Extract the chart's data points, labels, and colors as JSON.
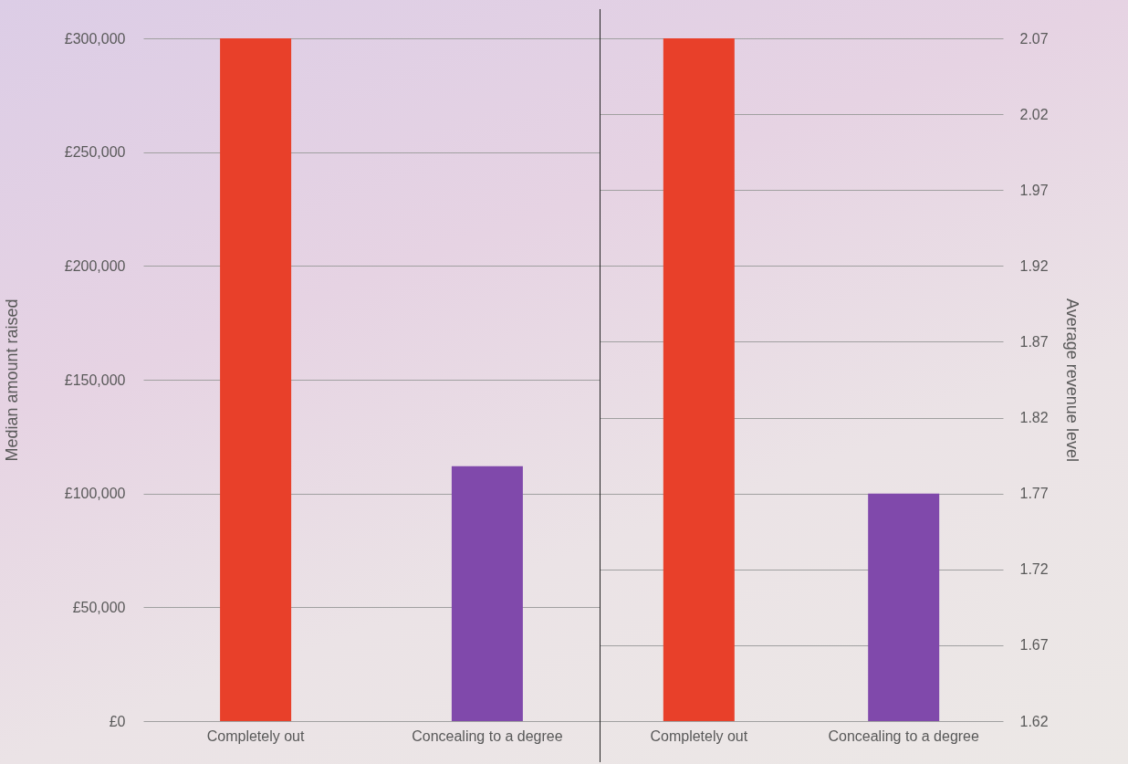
{
  "chart_data": [
    {
      "type": "bar",
      "ylabel": "Median amount raised",
      "categories": [
        "Completely out",
        "Concealing to a degree"
      ],
      "values": [
        300000,
        112000
      ],
      "colors": [
        "#e8402a",
        "#8049ab"
      ],
      "ylim": [
        0,
        300000
      ],
      "yticks": [
        {
          "value": 0,
          "label": "£0"
        },
        {
          "value": 50000,
          "label": "£50,000"
        },
        {
          "value": 100000,
          "label": "£100,000"
        },
        {
          "value": 150000,
          "label": "£150,000"
        },
        {
          "value": 200000,
          "label": "£200,000"
        },
        {
          "value": 250000,
          "label": "£250,000"
        },
        {
          "value": 300000,
          "label": "£300,000"
        }
      ],
      "grid": "y"
    },
    {
      "type": "bar",
      "ylabel": "Average revenue level",
      "categories": [
        "Completely out",
        "Concealing to a degree"
      ],
      "values": [
        2.07,
        1.77
      ],
      "colors": [
        "#e8402a",
        "#8049ab"
      ],
      "ylim": [
        1.62,
        2.07
      ],
      "yticks": [
        1.62,
        1.67,
        1.72,
        1.77,
        1.82,
        1.87,
        1.92,
        1.97,
        2.02,
        2.07
      ],
      "grid": "y"
    }
  ]
}
